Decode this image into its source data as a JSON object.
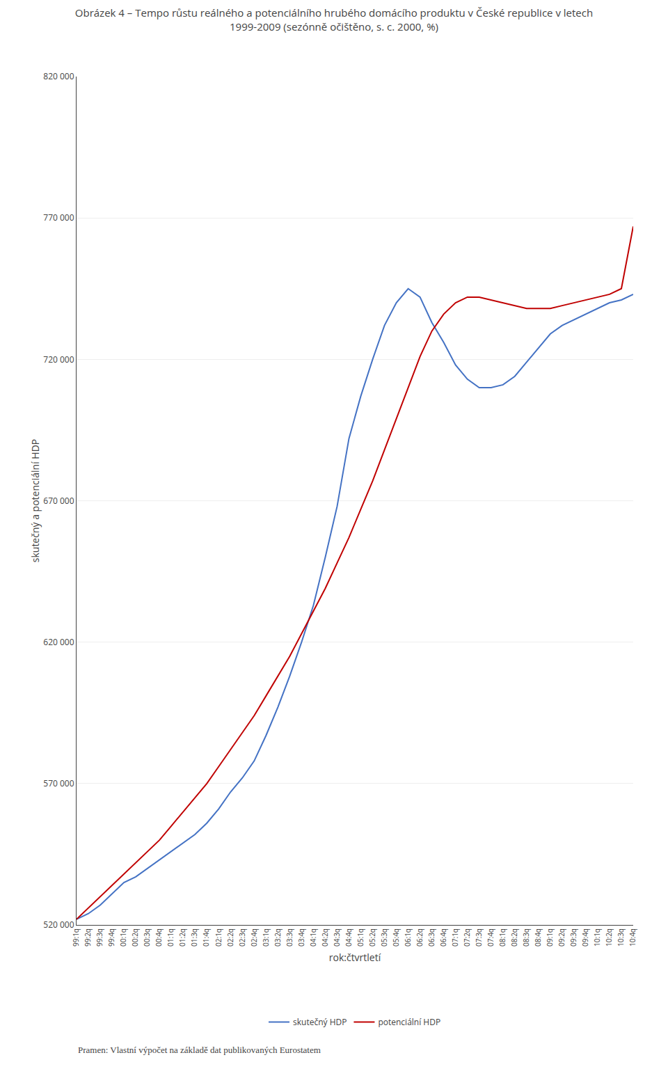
{
  "chart_data": {
    "type": "line",
    "title": "Obrázek 4 – Tempo růstu reálného a potenciálního hrubého domácího produktu v České republice v letech\n1999-2009 (sezónně očištěno, s. c. 2000, %)",
    "xlabel": "rok:čtvrtletí",
    "ylabel": "skutečný a potenciální HDP",
    "annotations": [
      "Pramen: Vlastní výpočet na základě dat publikovaných Eurostatem"
    ],
    "categories": [
      "99:1q",
      "99:2q",
      "99:3q",
      "99:4q",
      "00:1q",
      "00:2q",
      "00:3q",
      "00:4q",
      "01:1q",
      "01:2q",
      "01:3q",
      "01:4q",
      "02:1q",
      "02:2q",
      "02:3q",
      "02:4q",
      "03:1q",
      "03:2q",
      "03:3q",
      "03:4q",
      "04:1q",
      "04:2q",
      "04:3q",
      "04:4q",
      "05:1q",
      "05:2q",
      "05:3q",
      "05:4q",
      "06:1q",
      "06:2q",
      "06:3q",
      "06:4q",
      "07:1q",
      "07:2q",
      "07:3q",
      "07:4q",
      "08:1q",
      "08:2q",
      "08:3q",
      "08:4q",
      "09:1q",
      "09:2q",
      "09:3q",
      "09:4q",
      "10:1q",
      "10:2q",
      "10:3q",
      "10:4q"
    ],
    "series": [
      {
        "name": "skutečný HDP",
        "color": "#4472c4",
        "values": [
          522000,
          524000,
          527000,
          531000,
          535000,
          537000,
          540000,
          543000,
          546000,
          549000,
          552000,
          556000,
          561000,
          567000,
          572000,
          578000,
          587000,
          597000,
          608000,
          620000,
          633000,
          650000,
          668000,
          692000,
          707000,
          720000,
          732000,
          740000,
          745000,
          742000,
          733000,
          726000,
          718000,
          713000,
          710000,
          710000,
          711000,
          714000,
          719000,
          724000,
          729000,
          732000,
          734000,
          736000,
          738000,
          740000,
          741000,
          743000
        ]
      },
      {
        "name": "potenciální HDP",
        "color": "#c00000",
        "values": [
          522000,
          526000,
          530000,
          534000,
          538000,
          542000,
          546000,
          550000,
          555000,
          560000,
          565000,
          570000,
          576000,
          582000,
          588000,
          594000,
          601000,
          608000,
          615000,
          623000,
          631000,
          639000,
          648000,
          657000,
          667000,
          677000,
          688000,
          699000,
          710000,
          721000,
          730000,
          736000,
          740000,
          742000,
          742000,
          741000,
          740000,
          739000,
          738000,
          738000,
          738000,
          739000,
          740000,
          741000,
          742000,
          743000,
          745000,
          767000
        ]
      }
    ],
    "ylim": [
      520000,
      820000
    ],
    "yticks": [
      {
        "value": 520000,
        "label": "520 000"
      },
      {
        "value": 570000,
        "label": "570 000"
      },
      {
        "value": 620000,
        "label": "620 000"
      },
      {
        "value": 670000,
        "label": "670 000"
      },
      {
        "value": 720000,
        "label": "720 000"
      },
      {
        "value": 770000,
        "label": "770 000"
      },
      {
        "value": 820000,
        "label": "820 000"
      }
    ],
    "grid": "y",
    "legend": "bottom"
  }
}
